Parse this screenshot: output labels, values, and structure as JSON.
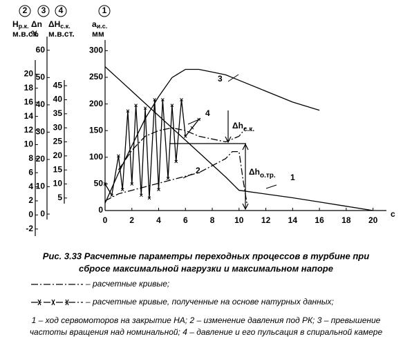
{
  "chart_data": {
    "type": "line",
    "xlim": [
      0,
      21
    ],
    "xticks": [
      0,
      2,
      4,
      6,
      8,
      10,
      12,
      14,
      16,
      18,
      20
    ],
    "x_label": "с",
    "axes": [
      {
        "number": "2",
        "label": "H",
        "subscript": "р.к.",
        "unit": "м.в.ст.",
        "ylim": [
          -3,
          22
        ],
        "yticks": [
          -2,
          0,
          2,
          4,
          6,
          8,
          10,
          12,
          14,
          16,
          18,
          20
        ]
      },
      {
        "number": "3",
        "label": "Δn",
        "unit": "%",
        "ylim": [
          -2,
          65
        ],
        "yticks": [
          0,
          10,
          20,
          30,
          40,
          50,
          60
        ]
      },
      {
        "number": "4",
        "label": "ΔH",
        "subscript": "с.к.",
        "unit": "м.в.ст.",
        "ylim": [
          3,
          47
        ],
        "yticks": [
          5,
          10,
          15,
          20,
          25,
          30,
          35,
          40,
          45
        ]
      },
      {
        "number": "1",
        "label": "a",
        "subscript": "и.с.",
        "unit": "мм",
        "ylim": [
          0,
          320
        ],
        "yticks": [
          0,
          50,
          100,
          150,
          200,
          250,
          300
        ]
      }
    ],
    "series": [
      {
        "label": "1",
        "axis": 3,
        "color": "#000",
        "style": "solid",
        "x": [
          0,
          1,
          2,
          3,
          4,
          5,
          6,
          7,
          8,
          9,
          10,
          12,
          14,
          16,
          18,
          20
        ],
        "values": [
          270,
          247,
          224,
          201,
          178,
          155,
          132,
          109,
          86,
          63,
          38,
          31,
          24,
          16,
          8,
          0
        ]
      },
      {
        "label": "2",
        "axis": 0,
        "color": "#000",
        "style": "dashdot",
        "x": [
          0,
          1,
          2,
          3,
          4,
          5,
          6,
          7,
          8,
          9,
          9.5,
          10,
          10.3,
          10.6
        ],
        "values": [
          2,
          3,
          3.5,
          4,
          4.5,
          5,
          5.5,
          6,
          7,
          8,
          9,
          9,
          5,
          1.5
        ]
      },
      {
        "label": "3",
        "axis": 1,
        "color": "#000",
        "style": "solid",
        "x": [
          0,
          1,
          2,
          3,
          4,
          5,
          6,
          7,
          8,
          9,
          10,
          12,
          14,
          16
        ],
        "values": [
          4,
          15,
          25,
          35,
          43,
          50,
          53,
          53,
          52,
          51,
          49,
          45,
          41,
          38
        ]
      },
      {
        "label": "4",
        "axis": 2,
        "color": "#000",
        "style": "natural",
        "x": [
          0,
          0.5,
          1,
          1.3,
          1.7,
          2,
          2.3,
          2.7,
          3,
          3.3,
          3.7,
          4,
          4.3,
          4.7,
          5,
          5.3,
          5.7,
          6,
          6.5,
          7
        ],
        "values": [
          10,
          6,
          20,
          8,
          36,
          10,
          38,
          6,
          37,
          5,
          40,
          8,
          40,
          12,
          38,
          18,
          40,
          27,
          30,
          33
        ]
      },
      {
        "axis": 2,
        "color": "#000",
        "style": "dashdot",
        "x": [
          1,
          2,
          3,
          4,
          5,
          6,
          7,
          8,
          9,
          10,
          10.5
        ],
        "values": [
          15,
          22,
          27,
          29,
          30,
          29,
          27,
          26,
          25,
          27,
          30
        ]
      }
    ],
    "annotations": [
      {
        "text": "Δh",
        "sub": "с.к."
      },
      {
        "text": "Δh",
        "sub": "о.тр."
      }
    ]
  },
  "caption": {
    "title": [
      "Рис. 3.33  Расчетные параметры переходных процессов в турбине при",
      "сбросе максимальной нагрузки и максимальном напоре"
    ],
    "legend": [
      "– расчетные кривые;",
      "– расчетные кривые, полученные на основе натурных данных;"
    ],
    "notes": [
      "1 – ход сервомоторов на закрытие НА; 2 – изменение давления под РК; 3 – превышение",
      "частоты вращения над номинальной; 4 – давление и его пульсация в спиральной камере"
    ]
  }
}
